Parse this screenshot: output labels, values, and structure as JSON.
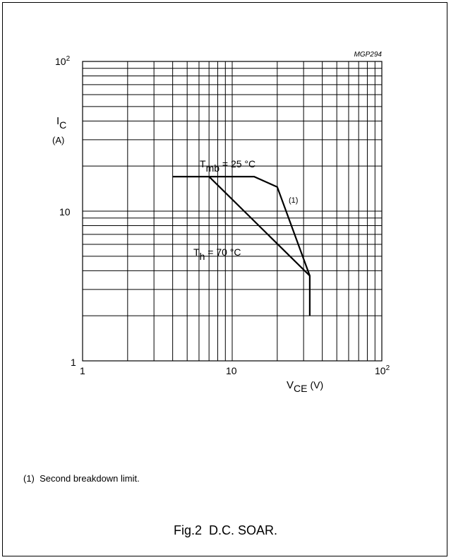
{
  "figure_code": "MGP294",
  "note": "(1)  Second breakdown limit.",
  "caption": "Fig.2  D.C. SOAR.",
  "chart_data": {
    "type": "line",
    "x_scale": "log",
    "y_scale": "log",
    "xlim": [
      1,
      100
    ],
    "ylim": [
      1,
      100
    ],
    "xlabel_main": "V",
    "xlabel_sub": "CE",
    "xlabel_unit": "(V)",
    "ylabel_main": "I",
    "ylabel_sub": "C",
    "ylabel_unit": "(A)",
    "x_tick_labels": [
      {
        "value": 1,
        "base": "1",
        "exp": ""
      },
      {
        "value": 10,
        "base": "10",
        "exp": ""
      },
      {
        "value": 100,
        "base": "10",
        "exp": "2"
      }
    ],
    "y_tick_labels": [
      {
        "value": 1,
        "base": "1",
        "exp": ""
      },
      {
        "value": 10,
        "base": "10",
        "exp": ""
      },
      {
        "value": 100,
        "base": "10",
        "exp": "2"
      }
    ],
    "grid": true,
    "series": [
      {
        "name": "Tmb = 25 °C",
        "label_main": "T",
        "label_sub": "mb",
        "label_rest": " = 25 °C",
        "points": [
          [
            4,
            17
          ],
          [
            14,
            17
          ],
          [
            20,
            14.5
          ],
          [
            33,
            3.7
          ],
          [
            33,
            2
          ]
        ]
      },
      {
        "name": "Th = 70 °C",
        "label_main": "T",
        "label_sub": "h",
        "label_rest": " = 70 °C",
        "points": [
          [
            7,
            17
          ],
          [
            33,
            3.7
          ]
        ]
      }
    ],
    "annotations": [
      {
        "text": "(1)",
        "x": 22.5,
        "y": 12
      }
    ]
  }
}
